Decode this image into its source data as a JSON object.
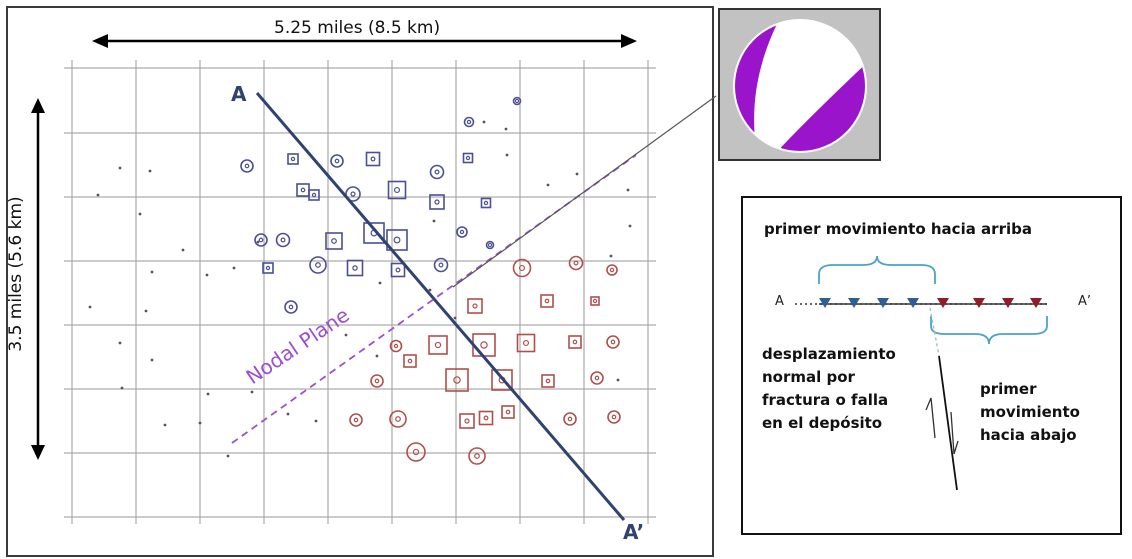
{
  "map": {
    "width_label": "5.25 miles (8.5 km)",
    "height_label": "3.5 miles (5.6 km)",
    "section_start": "A",
    "section_end": "A’",
    "nodal_plane_label": "Nodal Plane",
    "colors": {
      "frame": "#3a3a3a",
      "grid": "#9a9a9a",
      "upward_symbols": "#4a4f96",
      "downward_symbols": "#b0504a",
      "section_line": "#2f4370",
      "nodal_plane": "#9b4fd0",
      "beachball_fill": "#9a14cc"
    }
  },
  "legend": {
    "start_label": "A",
    "end_label": "A’",
    "upward_title": "primer movimiento hacia arriba",
    "fault_text": [
      "desplazamiento",
      "normal por",
      "fractura o falla",
      "en el depósito"
    ],
    "downward_text": [
      "primer",
      "movimiento",
      "hacia abajo"
    ],
    "colors": {
      "up_triangle": "#2f5e96",
      "down_triangle": "#8e1d28",
      "bracket": "#4aa3c8"
    }
  }
}
